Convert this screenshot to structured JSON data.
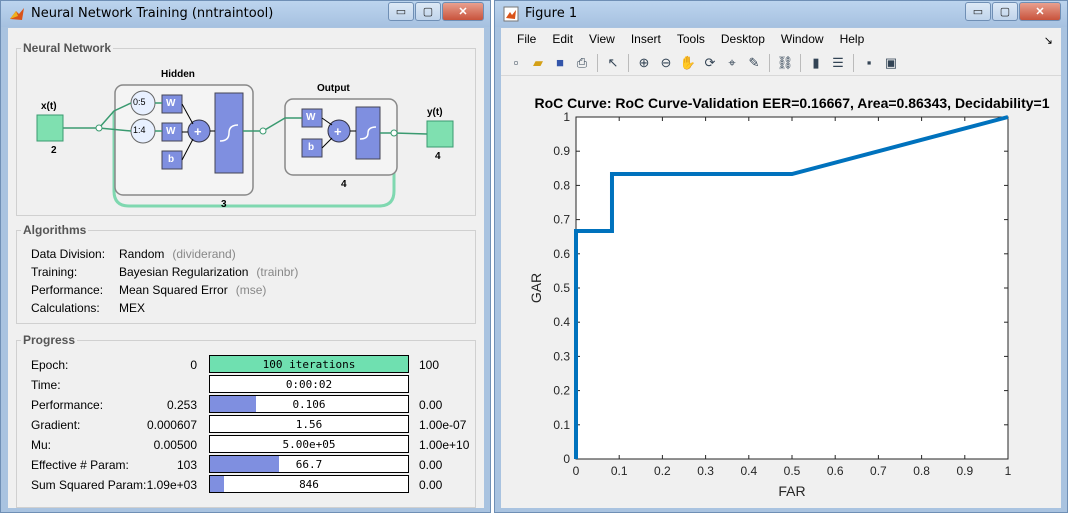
{
  "left_window": {
    "title": "Neural Network Training (nntraintool)",
    "buttons": {
      "minimize": "▭",
      "maximize": "▢",
      "close": "✕"
    },
    "network": {
      "section_title": "Neural Network",
      "input_label": "x(t)",
      "input_size": "2",
      "hidden_title": "Hidden",
      "hidden_delay_1": "0:5",
      "hidden_delay_2": "1:4",
      "hidden_size": "3",
      "output_title": "Output",
      "output_size": "4",
      "output_label": "y(t)",
      "output_dim": "4",
      "weight_label": "W",
      "bias_label": "b",
      "plus": "+"
    },
    "algorithms": {
      "section_title": "Algorithms",
      "rows": [
        {
          "key": "Data Division:",
          "value": "Random",
          "sub": "(dividerand)"
        },
        {
          "key": "Training:",
          "value": "Bayesian Regularization",
          "sub": "(trainbr)"
        },
        {
          "key": "Performance:",
          "value": "Mean Squared Error",
          "sub": "(mse)"
        },
        {
          "key": "Calculations:",
          "value": "MEX",
          "sub": ""
        }
      ]
    },
    "progress": {
      "section_title": "Progress",
      "rows": [
        {
          "key": "Epoch:",
          "start": "0",
          "bar": "100 iterations",
          "end": "100",
          "fill": 1.0,
          "color": "#6fe0b0"
        },
        {
          "key": "Time:",
          "start": "",
          "bar": "0:00:02",
          "end": "",
          "fill": 0.0,
          "color": "#7f8fe0"
        },
        {
          "key": "Performance:",
          "start": "0.253",
          "bar": "0.106",
          "end": "0.00",
          "fill": 0.23,
          "color": "#7f8fe0"
        },
        {
          "key": "Gradient:",
          "start": "0.000607",
          "bar": "1.56",
          "end": "1.00e-07",
          "fill": 0.0,
          "color": "#7f8fe0"
        },
        {
          "key": "Mu:",
          "start": "0.00500",
          "bar": "5.00e+05",
          "end": "1.00e+10",
          "fill": 0.0,
          "color": "#7f8fe0"
        },
        {
          "key": "Effective # Param:",
          "start": "103",
          "bar": "66.7",
          "end": "0.00",
          "fill": 0.35,
          "color": "#7f8fe0"
        },
        {
          "key": "Sum Squared Param:",
          "start": "1.09e+03",
          "bar": "846",
          "end": "0.00",
          "fill": 0.07,
          "color": "#7f8fe0"
        }
      ]
    }
  },
  "right_window": {
    "title": "Figure 1",
    "buttons": {
      "minimize": "▭",
      "maximize": "▢",
      "close": "✕"
    },
    "menu": [
      "File",
      "Edit",
      "View",
      "Insert",
      "Tools",
      "Desktop",
      "Window",
      "Help"
    ],
    "menu_arrow": "↘",
    "toolbar_icons": [
      "new-figure-icon",
      "open-file-icon",
      "save-icon",
      "print-icon",
      "select-pointer-icon",
      "zoom-in-icon",
      "zoom-out-icon",
      "pan-icon",
      "rotate-3d-icon",
      "data-cursor-icon",
      "brush-icon",
      "link-plot-icon",
      "colorbar-icon",
      "legend-icon",
      "hide-plot-tools-icon",
      "show-plot-tools-icon"
    ]
  },
  "chart_data": {
    "type": "line",
    "title": "RoC Curve: RoC Curve-Validation   EER=0.16667,    Area=0.86343,    Decidability=1",
    "xlabel": "FAR",
    "ylabel": "GAR",
    "xlim": [
      0,
      1
    ],
    "ylim": [
      0,
      1
    ],
    "xticks": [
      "0",
      "0.1",
      "0.2",
      "0.3",
      "0.4",
      "0.5",
      "0.6",
      "0.7",
      "0.8",
      "0.9",
      "1"
    ],
    "yticks": [
      "0",
      "0.1",
      "0.2",
      "0.3",
      "0.4",
      "0.5",
      "0.6",
      "0.7",
      "0.8",
      "0.9",
      "1"
    ],
    "grid": false,
    "series": [
      {
        "x": [
          0,
          0,
          0.0833,
          0.0833,
          0.5,
          1.0
        ],
        "y": [
          0,
          0.6667,
          0.6667,
          0.8333,
          0.8333,
          1.0
        ],
        "color": "#0072bd"
      }
    ]
  }
}
